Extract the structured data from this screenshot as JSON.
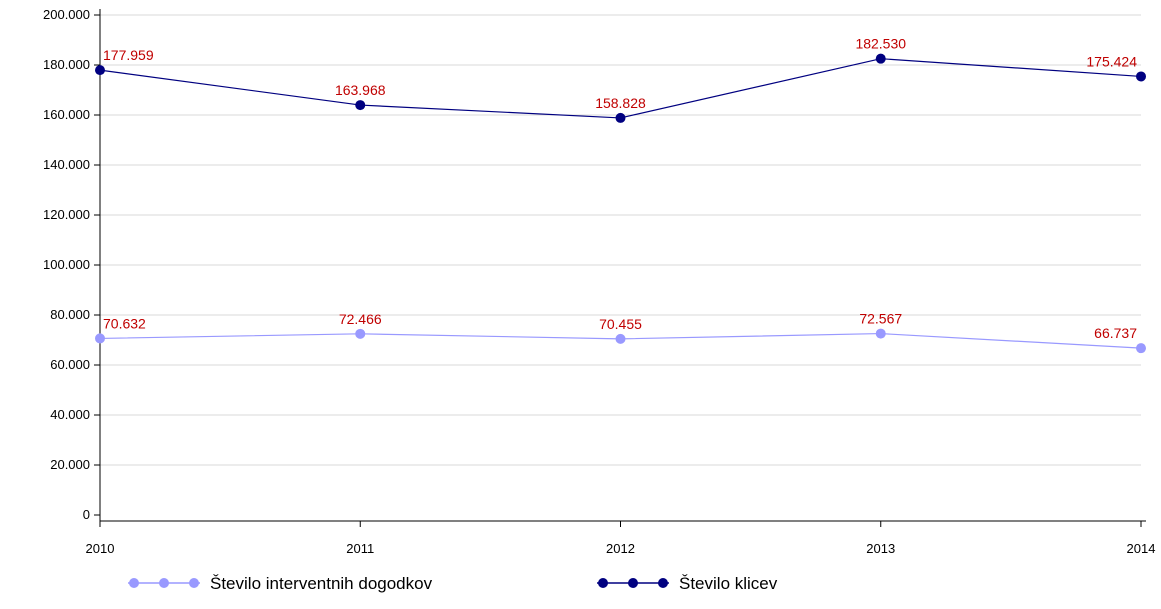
{
  "chart_data": {
    "type": "line",
    "categories": [
      "2010",
      "2011",
      "2012",
      "2013",
      "2014"
    ],
    "series": [
      {
        "name": "Število interventnih dogodkov",
        "values": [
          70632,
          72466,
          70455,
          72567,
          66737
        ],
        "labels": [
          "70.632",
          "72.466",
          "70.455",
          "72.567",
          "66.737"
        ],
        "color": "#9999ff"
      },
      {
        "name": "Število klicev",
        "values": [
          177959,
          163968,
          158828,
          182530,
          175424
        ],
        "labels": [
          "177.959",
          "163.968",
          "158.828",
          "182.530",
          "175.424"
        ],
        "color": "#000080"
      }
    ],
    "ylim": [
      0,
      200000
    ],
    "yticks": [
      0,
      20000,
      40000,
      60000,
      80000,
      100000,
      120000,
      140000,
      160000,
      180000,
      200000
    ],
    "ytick_labels": [
      "0",
      "20.000",
      "40.000",
      "60.000",
      "80.000",
      "100.000",
      "120.000",
      "140.000",
      "160.000",
      "180.000",
      "200.000"
    ],
    "grid": true,
    "legend_position": "bottom",
    "data_label_color": "#c00000",
    "axis_color": "#000000",
    "grid_color": "#d9d9d9"
  }
}
